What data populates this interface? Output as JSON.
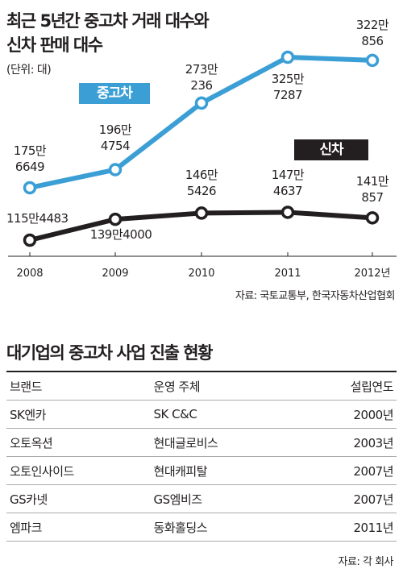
{
  "chart_data": {
    "type": "line",
    "title": "최근 5년간 중고차 거래 대수와 신차 판매 대수",
    "unit": "(단위: 대)",
    "categories": [
      "2008",
      "2009",
      "2010",
      "2011",
      "2012년"
    ],
    "series": [
      {
        "name": "중고차",
        "color": "#3b9fd6",
        "values": [
          1756649,
          1964754,
          2730236,
          3257287,
          3220856
        ],
        "labels": [
          [
            "175만",
            "6649"
          ],
          [
            "196만",
            "4754"
          ],
          [
            "273만",
            "236"
          ],
          [
            "325만",
            "7287"
          ],
          [
            "322만",
            "856"
          ]
        ]
      },
      {
        "name": "신차",
        "color": "#231f20",
        "values": [
          1154483,
          1394000,
          1465426,
          1474637,
          1410857
        ],
        "labels": [
          [
            "115만4483"
          ],
          [
            "139만4000"
          ],
          [
            "146만",
            "5426"
          ],
          [
            "147만",
            "4637"
          ],
          [
            "141만",
            "857"
          ]
        ]
      }
    ],
    "source": "자료: 국토교통부, 한국자동차산업협회"
  },
  "table": {
    "title": "대기업의 중고차 사업 진출 현황",
    "headers": [
      "브랜드",
      "운영 주체",
      "설립연도"
    ],
    "rows": [
      [
        "SK엔카",
        "SK C&C",
        "2000년"
      ],
      [
        "오토옥션",
        "현대글로비스",
        "2003년"
      ],
      [
        "오토인사이드",
        "현대캐피탈",
        "2007년"
      ],
      [
        "GS카넷",
        "GS엠비즈",
        "2007년"
      ],
      [
        "엠파크",
        "동화홀딩스",
        "2011년"
      ]
    ],
    "source": "자료: 각 회사"
  },
  "header": {
    "title_line1": "최근 5년간 중고차 거래 대수와",
    "title_line2": "신차 판매 대수"
  }
}
